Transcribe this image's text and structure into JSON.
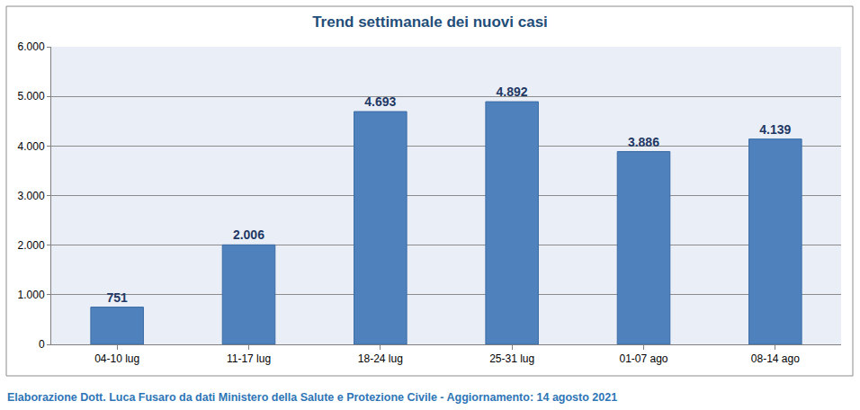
{
  "chart_data": {
    "type": "bar",
    "title": "Trend settimanale dei nuovi casi",
    "categories": [
      "04-10 lug",
      "11-17 lug",
      "18-24 lug",
      "25-31 lug",
      "01-07 ago",
      "08-14 ago"
    ],
    "values": [
      751,
      2006,
      4693,
      4892,
      3886,
      4139
    ],
    "value_labels": [
      "751",
      "2.006",
      "4.693",
      "4.892",
      "3.886",
      "4.139"
    ],
    "data_labels": true,
    "color": "#4f81bd",
    "ylim": [
      0,
      6000
    ],
    "yticks": [
      0,
      {
        "value": 1000,
        "label": "1.000"
      },
      {
        "value": 2000,
        "label": "2.000"
      },
      {
        "value": 3000,
        "label": "3.000"
      },
      {
        "value": 4000,
        "label": "4.000"
      },
      {
        "value": 5000,
        "label": "5.000"
      },
      {
        "value": 6000,
        "label": "6.000"
      }
    ],
    "grid": true,
    "annotations": [
      "Elaborazione Dott. Luca Fusaro da dati Ministero della Salute e Protezione Civile - Aggiornamento: 14 agosto 2021"
    ]
  }
}
